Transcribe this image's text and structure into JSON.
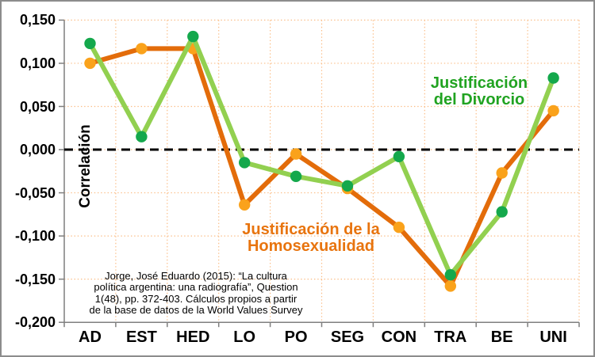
{
  "window": {
    "background": "#FFFFFF",
    "border_color": "#8C8C8C"
  },
  "chart_data": {
    "type": "line",
    "title": "",
    "categories": [
      "AD",
      "EST",
      "HED",
      "LO",
      "PO",
      "SEG",
      "CON",
      "TRA",
      "BE",
      "UNI"
    ],
    "series": [
      {
        "name": "Justificación de la Homosexualidad",
        "line_color": "#E36C0A",
        "marker_color": "#FAA21B",
        "values": [
          0.1,
          0.117,
          0.117,
          -0.064,
          -0.005,
          -0.045,
          -0.09,
          -0.158,
          -0.027,
          0.045
        ]
      },
      {
        "name": "Justificación del Divorcio",
        "line_color": "#92D050",
        "marker_color": "#14A84C",
        "values": [
          0.123,
          0.015,
          0.131,
          -0.015,
          -0.031,
          -0.042,
          -0.008,
          -0.145,
          -0.072,
          0.083
        ]
      }
    ],
    "ylabel": "Correlación",
    "xlabel": "",
    "ylim": [
      -0.2,
      0.15
    ],
    "ytick_step": 0.05,
    "ytick_labels": [
      "0,150",
      "0,100",
      "0,050",
      "0,000",
      "-0,050",
      "-0,100",
      "-0,150",
      "-0,200"
    ],
    "zero_line": {
      "style": "dashed",
      "color": "#000000"
    },
    "grid": {
      "horizontal": true,
      "vertical": true,
      "style": "dotted",
      "color": "#FBBC84"
    },
    "axis_color": "#7F7F7F",
    "legend_position": "inline-annotations"
  },
  "annotations": {
    "divorcio_label": {
      "line1": "Justificación",
      "line2": "del Divorcio",
      "color": "#21A321"
    },
    "homosexualidad_label": {
      "line1": "Justificación de la",
      "line2": "Homosexualidad",
      "color": "#E8740E"
    },
    "source_note": {
      "line1": "Jorge, José Eduardo (2015): “La cultura",
      "line2": "política argentina: una radiografía”, Question",
      "line3": "1(48), pp. 372-403. Cálculos propios a partir",
      "line4": "de la base de datos de la World Values Survey"
    }
  }
}
